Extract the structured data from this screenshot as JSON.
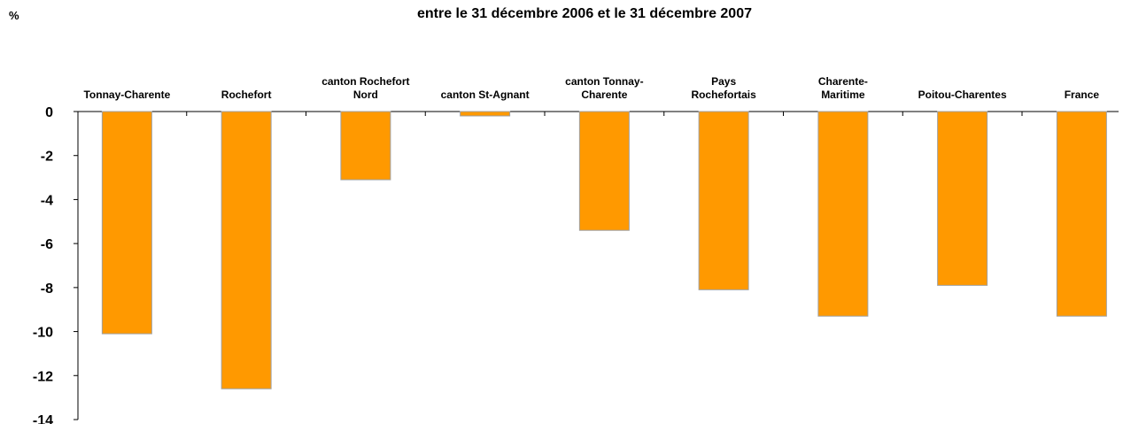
{
  "chart_data": {
    "type": "bar",
    "title": "entre le 31 décembre 2006 et le 31 décembre 2007",
    "y_label": "%",
    "categories": [
      "Tonnay-Charente",
      "Rochefort",
      "canton Rochefort\nNord",
      "canton St-Agnant",
      "canton Tonnay-\nCharente",
      "Pays\nRochefortais",
      "Charente-\nMaritime",
      "Poitou-Charentes",
      "France"
    ],
    "values": [
      -10.1,
      -12.6,
      -3.1,
      -0.2,
      -5.4,
      -8.1,
      -9.3,
      -7.9,
      -9.3
    ],
    "color": "#ff9900",
    "ylim": [
      -14,
      0
    ],
    "yticks": [
      0,
      -2,
      -4,
      -6,
      -8,
      -10,
      -12,
      -14
    ]
  }
}
